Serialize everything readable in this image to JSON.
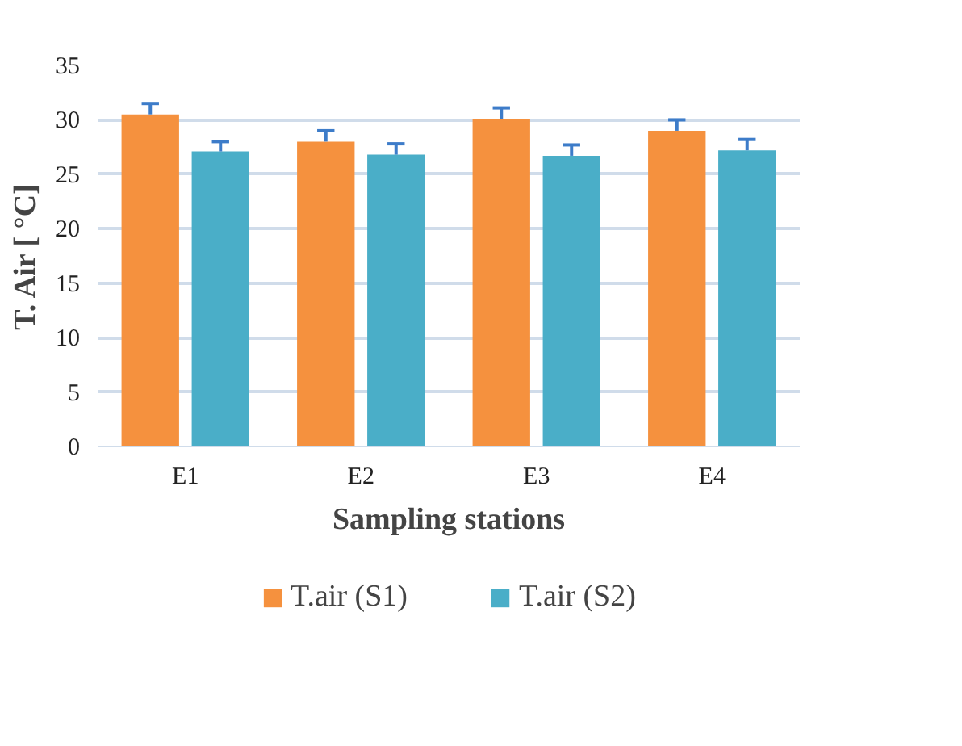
{
  "chart_data": {
    "type": "bar",
    "xlabel": "Sampling stations",
    "ylabel": "T. Air [ °C]",
    "categories": [
      "E1",
      "E2",
      "E3",
      "E4"
    ],
    "series": [
      {
        "name": "T.air (S1)",
        "color": "#f5913e",
        "values": [
          30.5,
          28.0,
          30.1,
          29.0
        ],
        "errors": [
          [
            30.5,
            31.5
          ],
          [
            28.0,
            29.0
          ],
          [
            30.1,
            31.1
          ],
          [
            29.0,
            30.0
          ]
        ]
      },
      {
        "name": "T.air (S2)",
        "color": "#4aaec8",
        "values": [
          27.1,
          26.8,
          26.7,
          27.2
        ],
        "errors": [
          [
            27.1,
            28.0
          ],
          [
            26.8,
            27.8
          ],
          [
            26.7,
            27.7
          ],
          [
            27.2,
            28.2
          ]
        ]
      }
    ],
    "ylim": [
      0,
      35
    ],
    "yticks": [
      0,
      5,
      10,
      15,
      20,
      25,
      30,
      35
    ],
    "grid": "y",
    "legend": "bottom"
  }
}
